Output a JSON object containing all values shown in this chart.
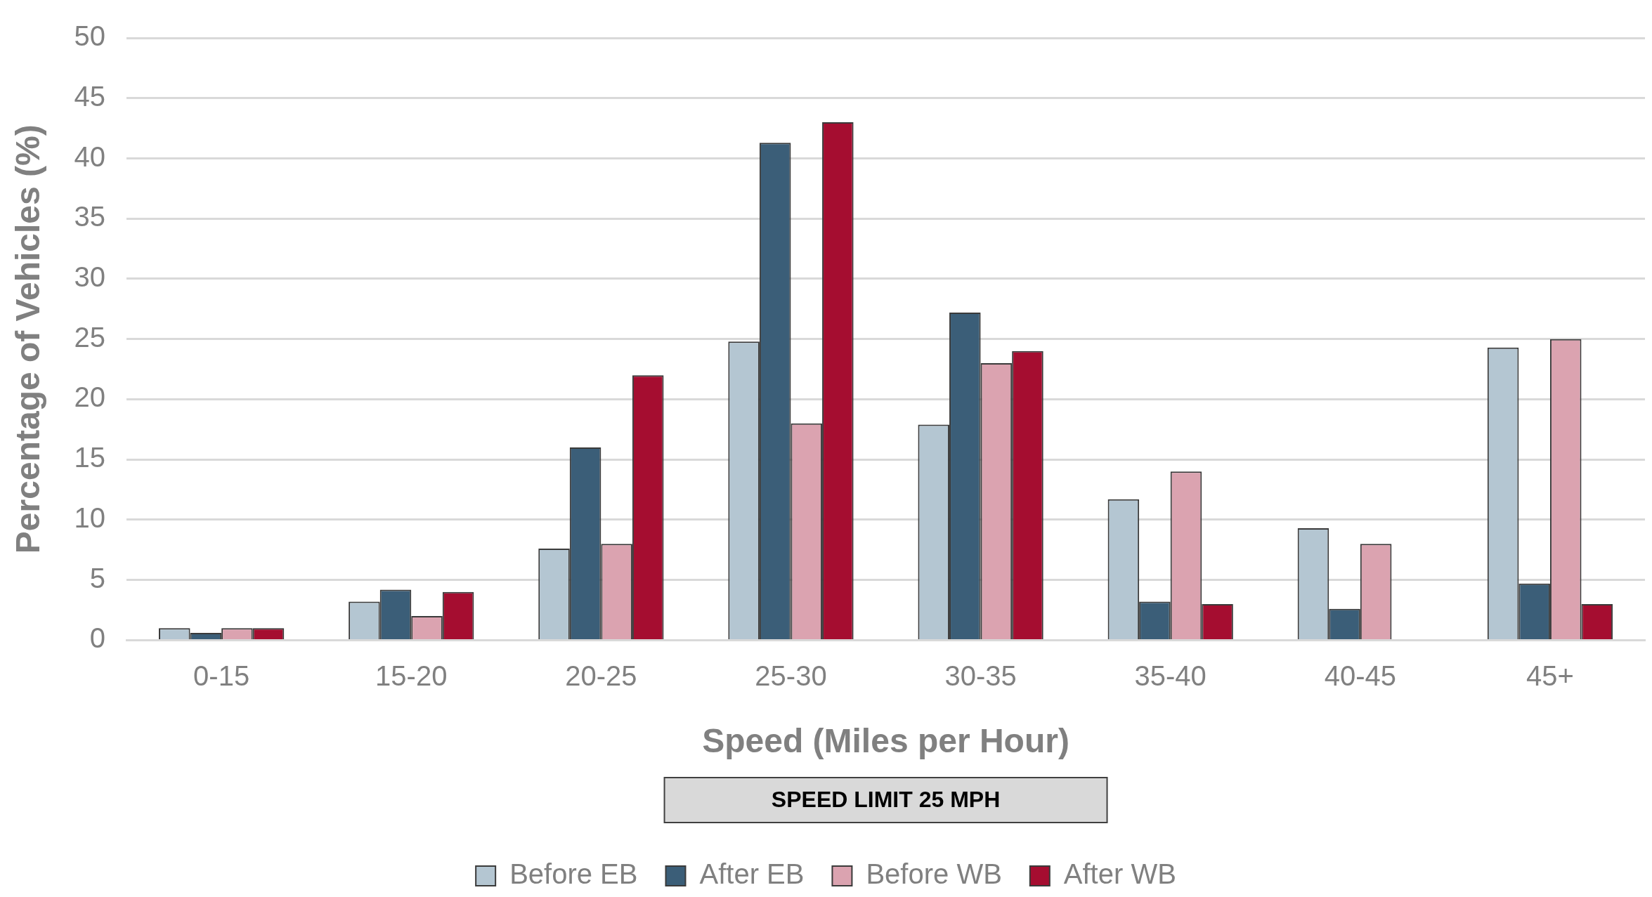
{
  "chart_data": {
    "type": "bar",
    "categories": [
      "0-15",
      "15-20",
      "20-25",
      "25-30",
      "30-35",
      "35-40",
      "40-45",
      "45+"
    ],
    "series": [
      {
        "name": "Before EB",
        "color": "#b4c6d2",
        "values": [
          1.0,
          3.2,
          7.6,
          24.8,
          17.9,
          11.7,
          9.3,
          24.3
        ]
      },
      {
        "name": "After EB",
        "color": "#3b5e78",
        "values": [
          0.6,
          4.2,
          16,
          41.3,
          27.2,
          3.2,
          2.6,
          4.7
        ]
      },
      {
        "name": "Before WB",
        "color": "#dba3b0",
        "values": [
          1.0,
          2.0,
          8.0,
          18.0,
          23.0,
          14.0,
          8.0,
          25.0
        ]
      },
      {
        "name": "After WB",
        "color": "#a50d30",
        "values": [
          1.0,
          4.0,
          22.0,
          43.0,
          24.0,
          3.0,
          null,
          3.0
        ]
      }
    ],
    "xlabel": "Speed (Miles per Hour)",
    "ylabel": "Percentage of Vehicles (%)",
    "ylim": [
      0,
      50
    ],
    "yticks": [
      0,
      5,
      10,
      15,
      20,
      25,
      30,
      35,
      40,
      45,
      50
    ],
    "grid": "y",
    "legend": "bottom",
    "annotations": [
      "SPEED LIMIT 25 MPH"
    ]
  }
}
